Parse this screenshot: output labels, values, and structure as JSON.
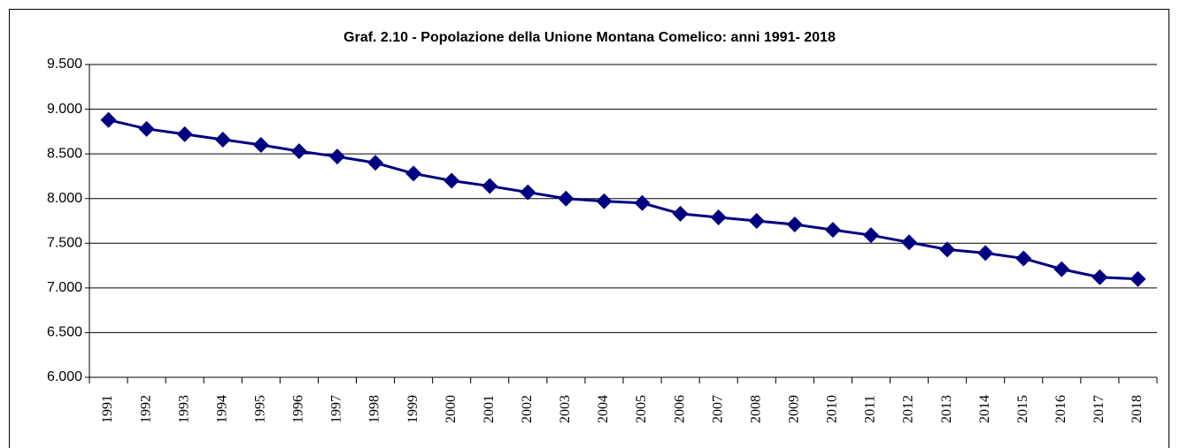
{
  "chart_data": {
    "type": "line",
    "title": "Graf. 2.10 - Popolazione della Unione Montana Comelico: anni 1991- 2018",
    "categories": [
      "1991",
      "1992",
      "1993",
      "1994",
      "1995",
      "1996",
      "1997",
      "1998",
      "1999",
      "2000",
      "2001",
      "2002",
      "2003",
      "2004",
      "2005",
      "2006",
      "2007",
      "2008",
      "2009",
      "2010",
      "2011",
      "2012",
      "2013",
      "2014",
      "2015",
      "2016",
      "2017",
      "2018"
    ],
    "series": [
      {
        "name": "Popolazione",
        "color": "#000080",
        "values": [
          8880,
          8780,
          8720,
          8660,
          8600,
          8530,
          8470,
          8400,
          8280,
          8200,
          8140,
          8070,
          8000,
          7970,
          7950,
          7830,
          7790,
          7750,
          7710,
          7650,
          7590,
          7510,
          7430,
          7390,
          7330,
          7210,
          7120,
          7100
        ]
      }
    ],
    "ylim": [
      6000,
      9500
    ],
    "yticks": [
      {
        "value": 6000,
        "label": "6.000"
      },
      {
        "value": 6500,
        "label": "6.500"
      },
      {
        "value": 7000,
        "label": "7.000"
      },
      {
        "value": 7500,
        "label": "7.500"
      },
      {
        "value": 8000,
        "label": "8.000"
      },
      {
        "value": 8500,
        "label": "8.500"
      },
      {
        "value": 9000,
        "label": "9.000"
      },
      {
        "value": 9500,
        "label": "9.500"
      }
    ],
    "grid": true
  }
}
